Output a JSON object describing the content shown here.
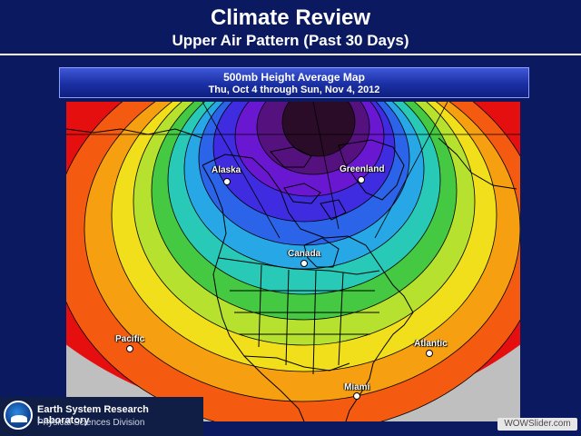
{
  "slide": {
    "title": "Climate Review",
    "subtitle": "Upper Air Pattern (Past 30 Days)"
  },
  "map": {
    "title": "500mb Height Average Map",
    "period": "Thu, Oct 4 through Sun, Nov 4, 2012",
    "labels": {
      "alaska": "Alaska",
      "greenland": "Greenland",
      "canada": "Canada",
      "pacific": "Pacific",
      "atlantic": "Atlantic",
      "miami": "Miami"
    },
    "colors": {
      "ring1": "#e60f0f",
      "ring2": "#f45a10",
      "ring3": "#f6a011",
      "ring4": "#f2df1b",
      "ring5": "#b6e12f",
      "ring6": "#45c842",
      "ring7": "#28c9b6",
      "ring8": "#27a7e6",
      "ring9": "#2b64e8",
      "ring10": "#3f2be0",
      "ring11": "#6a17d2",
      "ring12": "#55127f",
      "low": "#2a0c28",
      "off_map": "#bfbfbf"
    }
  },
  "branding": {
    "lab": "Earth System Research Laboratory",
    "division": "Physical Sciences Division",
    "watermark": "WOWSlider.com"
  }
}
